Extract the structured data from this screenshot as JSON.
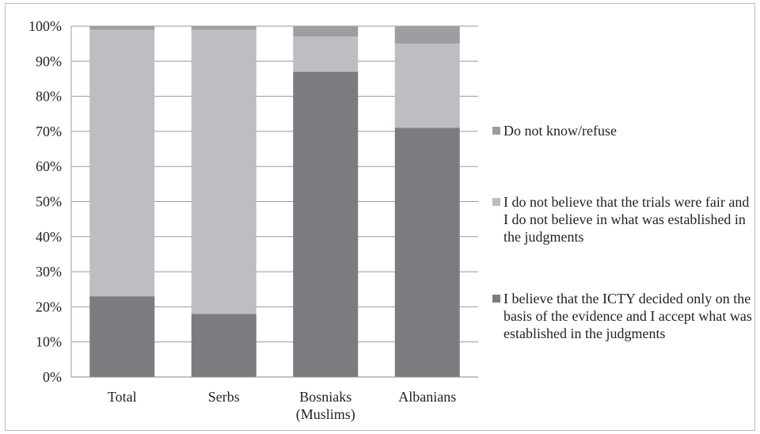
{
  "chart_data": {
    "type": "bar",
    "stacked": true,
    "categories": [
      "Total",
      "Serbs",
      "Bosniaks\n(Muslims)",
      "Albanians"
    ],
    "series": [
      {
        "name": "I believe that the ICTY decided only on the basis of the evidence and I accept what was established in the judgments",
        "values": [
          23,
          18,
          87,
          71
        ],
        "color": "#7b7c80"
      },
      {
        "name": "I do not believe that the trials were fair and I do not believe in what was established in the judgments",
        "values": [
          76,
          81,
          10,
          24
        ],
        "color": "#bdbec2"
      },
      {
        "name": "Do not know/refuse",
        "values": [
          1,
          1,
          3,
          5
        ],
        "color": "#9d9ea2"
      }
    ],
    "yticks": [
      "0%",
      "10%",
      "20%",
      "30%",
      "40%",
      "50%",
      "60%",
      "70%",
      "80%",
      "90%",
      "100%"
    ],
    "ylim": [
      0,
      100
    ],
    "grid": true,
    "legend_position": "right"
  }
}
